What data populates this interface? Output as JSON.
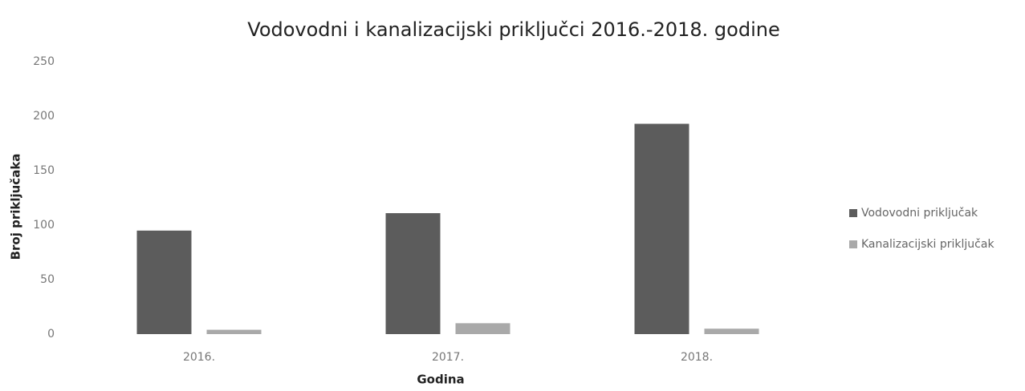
{
  "chart_data": {
    "type": "bar",
    "title": "Vodovodni i kanalizacijski priključci 2016.-2018. godine",
    "x_label": "Godina",
    "y_label": "Broj priključaka",
    "categories": [
      "2016.",
      "2017.",
      "2018."
    ],
    "series": [
      {
        "name": "Vodovodni priključak",
        "color": "#5c5c5c",
        "values": [
          95,
          111,
          193
        ]
      },
      {
        "name": "Kanalizacijski priključak",
        "color": "#a9a9a9",
        "values": [
          4,
          10,
          5
        ]
      }
    ],
    "ylim": [
      0,
      250
    ],
    "yticks": [
      0,
      50,
      100,
      150,
      200,
      250
    ],
    "grid": false,
    "legend": "right"
  }
}
